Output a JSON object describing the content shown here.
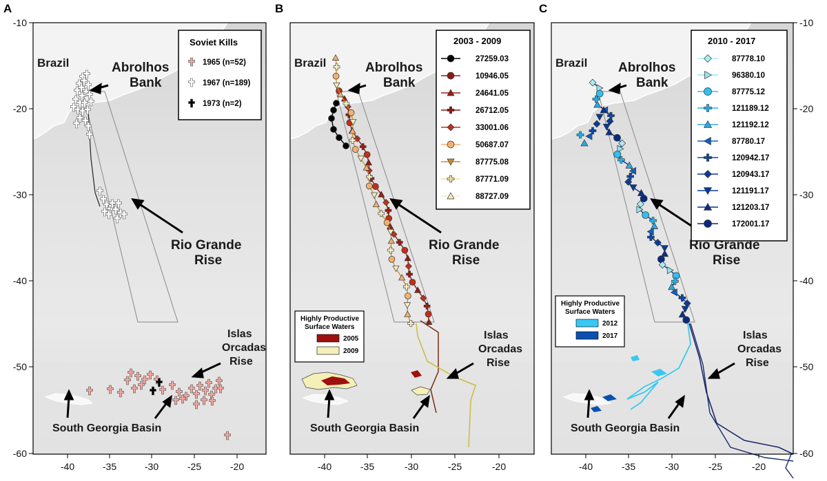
{
  "figure": {
    "panels": [
      {
        "id": "A",
        "letter": "A",
        "legend_title": "Soviet Kills",
        "legend_items": [
          {
            "label": "1965 (n=52)",
            "color": "#f2a6a0",
            "icon": "cross-icon"
          },
          {
            "label": "1967 (n=189)",
            "color": "#ffffff",
            "icon": "cross-icon"
          },
          {
            "label": "1973 (n=2)",
            "color": "#000000",
            "icon": "cross-icon"
          }
        ]
      },
      {
        "id": "B",
        "letter": "B",
        "legend_title": "2003 - 2009",
        "legend_items": [
          {
            "label": "27259.03",
            "color": "#000000",
            "icon": "circle-icon"
          },
          {
            "label": "10946.05",
            "color": "#8b1a10",
            "icon": "circle-icon"
          },
          {
            "label": "24641.05",
            "color": "#9a1d12",
            "icon": "triangle-up-icon"
          },
          {
            "label": "26712.05",
            "color": "#8b1a10",
            "icon": "plus-icon"
          },
          {
            "label": "33001.06",
            "color": "#c03018",
            "icon": "diamond-icon"
          },
          {
            "label": "50687.07",
            "color": "#f0b070",
            "icon": "circle-icon"
          },
          {
            "label": "87775.08",
            "color": "#c8902a",
            "icon": "triangle-down-icon"
          },
          {
            "label": "87771.09",
            "color": "#f3e0a0",
            "icon": "plus-icon"
          },
          {
            "label": "88727.09",
            "color": "#f5ecc0",
            "icon": "triangle-up-icon"
          }
        ],
        "productive_legend": {
          "title_line1": "Highly Productive",
          "title_line2": "Surface Waters",
          "items": [
            {
              "label": "2005",
              "color": "#a01010"
            },
            {
              "label": "2009",
              "color": "#f5f0b8"
            }
          ]
        }
      },
      {
        "id": "C",
        "letter": "C",
        "legend_title": "2010 - 2017",
        "legend_items": [
          {
            "label": "87778.10",
            "color": "#a8ecf8",
            "icon": "diamond-icon"
          },
          {
            "label": "96380.10",
            "color": "#90e4f4",
            "icon": "triangle-right-icon"
          },
          {
            "label": "87775.12",
            "color": "#30c0ee",
            "icon": "circle-icon"
          },
          {
            "label": "121189.12",
            "color": "#20b4ec",
            "icon": "plus-icon"
          },
          {
            "label": "121192.12",
            "color": "#30a8e0",
            "icon": "triangle-up-icon"
          },
          {
            "label": "87780.17",
            "color": "#1060c0",
            "icon": "triangle-left-icon"
          },
          {
            "label": "120942.17",
            "color": "#0a48a8",
            "icon": "plus-icon"
          },
          {
            "label": "120943.17",
            "color": "#0a3c98",
            "icon": "diamond-icon"
          },
          {
            "label": "121191.17",
            "color": "#0a3a96",
            "icon": "triangle-down-icon"
          },
          {
            "label": "121203.17",
            "color": "#0a3088",
            "icon": "triangle-up-icon"
          },
          {
            "label": "172001.17",
            "color": "#0a2a80",
            "icon": "circle-icon"
          }
        ],
        "productive_legend": {
          "title_line1": "Highly Productive",
          "title_line2": "Surface Waters",
          "items": [
            {
              "label": "2012",
              "color": "#38c8f4"
            },
            {
              "label": "2017",
              "color": "#0a50b0"
            }
          ]
        }
      }
    ],
    "place_names": {
      "brazil": "Brazil",
      "abrolhos_line1": "Abrolhos",
      "abrolhos_line2": "Bank",
      "rio_line1": "Rio Grande",
      "rio_line2": "Rise",
      "islas_line1": "Islas",
      "islas_line2": "Orcadas",
      "islas_line3": "Rise",
      "sgb": "South Georgia Basin"
    },
    "x_ticks": [
      "-40",
      "-35",
      "-30",
      "-25",
      "-20"
    ],
    "y_ticks": [
      "-10",
      "-20",
      "-30",
      "-40",
      "-50",
      "-60"
    ],
    "colors": {
      "sea": "#dedede",
      "land": "#f4f4f4",
      "track_2005": "#7a2a10",
      "track_2009": "#c8c040",
      "track_2012": "#38c8f4",
      "track_2017": "#1a2a6a"
    }
  }
}
